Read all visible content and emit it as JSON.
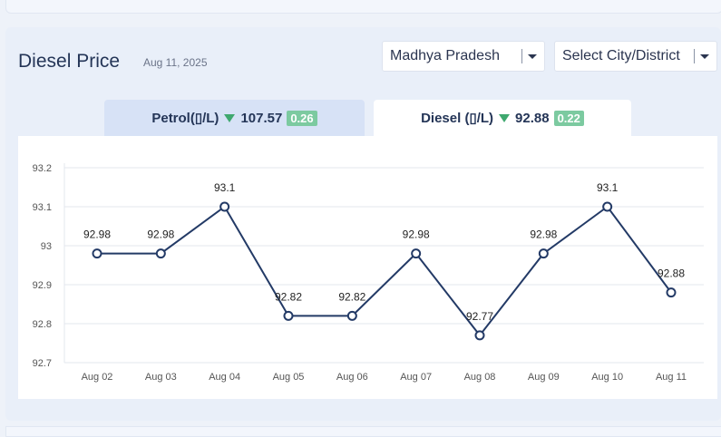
{
  "header": {
    "title": "Diesel Price",
    "date": "Aug 11, 2025"
  },
  "filters": {
    "state": "Madhya Pradesh",
    "city": "Select City/District"
  },
  "tabs": [
    {
      "fuel": "Petrol(▯/L)",
      "price": "107.57",
      "change": "0.26"
    },
    {
      "fuel": "Diesel (▯/L)",
      "price": "92.88",
      "change": "0.22"
    }
  ],
  "colors": {
    "line": "#233a66",
    "down": "#3fa86f",
    "badge": "#7ccaa0"
  },
  "chart_data": {
    "type": "line",
    "categories": [
      "Aug 02",
      "Aug 03",
      "Aug 04",
      "Aug 05",
      "Aug 06",
      "Aug 07",
      "Aug 08",
      "Aug 09",
      "Aug 10",
      "Aug 11"
    ],
    "values": [
      92.98,
      92.98,
      93.1,
      92.82,
      92.82,
      92.98,
      92.77,
      92.98,
      93.1,
      92.88
    ],
    "data_labels": [
      "92.98",
      "92.98",
      "93.1",
      "92.82",
      "92.82",
      "92.98",
      "92.77",
      "92.98",
      "93.1",
      "92.88"
    ],
    "yticks": [
      "92.7",
      "92.8",
      "92.9",
      "93",
      "93.1",
      "93.2"
    ],
    "ylim": [
      92.7,
      93.2
    ],
    "grid": true,
    "legend": "none"
  }
}
